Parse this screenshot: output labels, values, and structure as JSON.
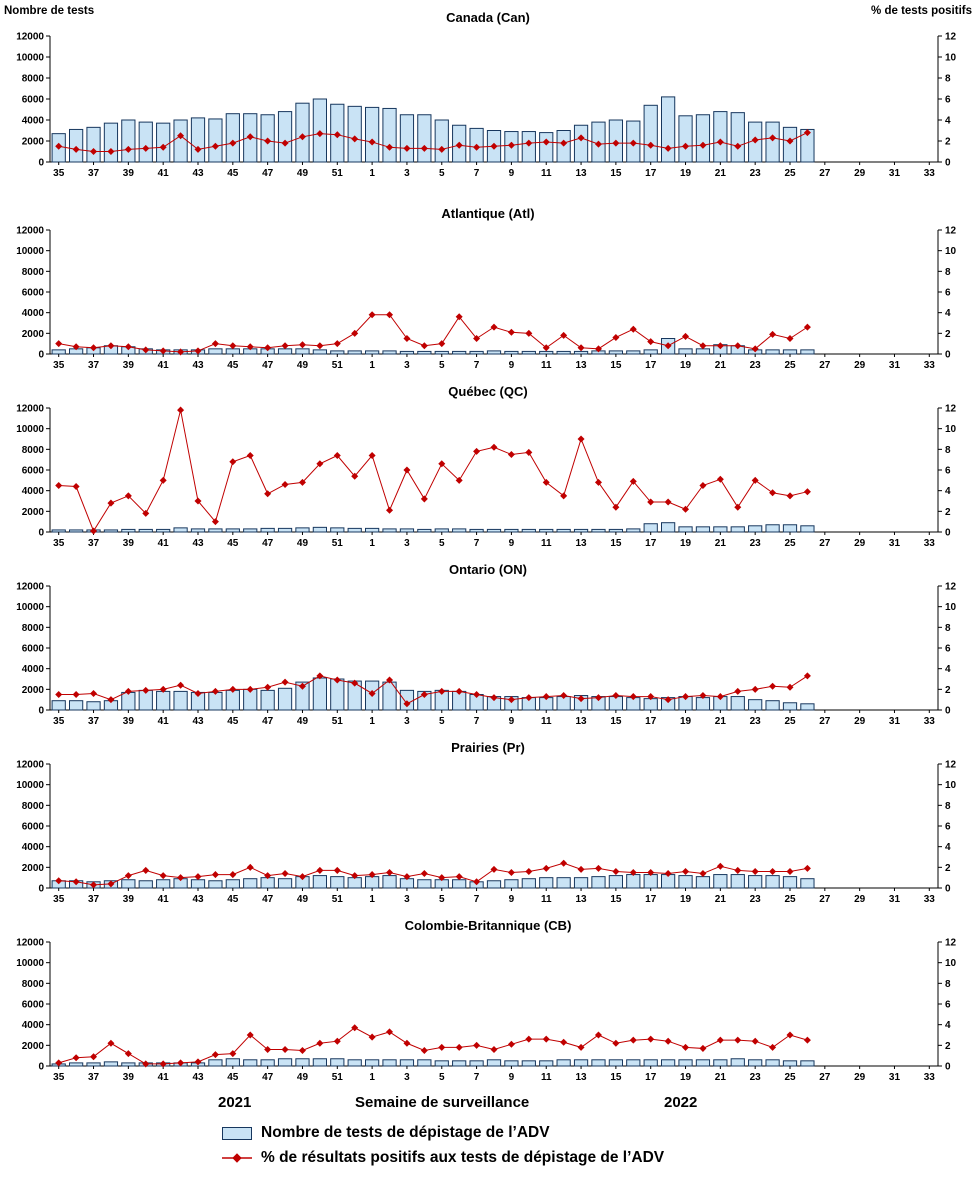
{
  "header": {
    "left_axis_label": "Nombre de tests",
    "right_axis_label": "% de tests positifs"
  },
  "footer": {
    "year_left": "2021",
    "x_axis_title": "Semaine de surveillance",
    "year_right": "2022"
  },
  "legend": {
    "bars_label": "Nombre de tests de dépistage de l’ADV",
    "line_label": "% de résultats positifs aux tests de dépistage de l’ADV"
  },
  "colors": {
    "bar_fill": "#C9E3F5",
    "bar_stroke": "#17375E",
    "line": "#C00000",
    "axis": "#000000"
  },
  "chart_data": {
    "type": "bar",
    "subtype": "small-multiples combo bar+line",
    "categories": [
      "35",
      "36",
      "37",
      "38",
      "39",
      "40",
      "41",
      "42",
      "43",
      "44",
      "45",
      "46",
      "47",
      "48",
      "49",
      "50",
      "51",
      "52",
      "1",
      "2",
      "3",
      "4",
      "5",
      "6",
      "7",
      "8",
      "9",
      "10",
      "11",
      "12",
      "13",
      "14",
      "15",
      "16",
      "17",
      "18",
      "19",
      "20",
      "21",
      "22",
      "23",
      "24",
      "25",
      "26",
      "27",
      "28",
      "29",
      "30",
      "31",
      "32",
      "33"
    ],
    "x_tick_labels": [
      "35",
      "37",
      "39",
      "41",
      "43",
      "45",
      "47",
      "49",
      "51",
      "1",
      "3",
      "5",
      "7",
      "9",
      "11",
      "13",
      "15",
      "17",
      "19",
      "21",
      "23",
      "25",
      "27",
      "29",
      "31",
      "33"
    ],
    "left_ylabel": "Nombre de tests",
    "right_ylabel": "% de tests positifs",
    "xlabel": "Semaine de surveillance",
    "left_ylim": [
      0,
      12000
    ],
    "right_ylim": [
      0,
      12
    ],
    "left_yticks": [
      0,
      2000,
      4000,
      6000,
      8000,
      10000,
      12000
    ],
    "right_yticks": [
      0,
      2,
      4,
      6,
      8,
      10,
      12
    ],
    "grid": false,
    "legend_position": "bottom",
    "data_weeks_note": "Data covers 2021 weeks 35-52 and 2022 weeks 1-26; weeks 27-33 of 2022 empty",
    "panels": [
      {
        "slug": "canada",
        "title": "Canada (Can)",
        "tests": [
          2700,
          3100,
          3300,
          3700,
          4000,
          3800,
          3700,
          4000,
          4200,
          4100,
          4600,
          4600,
          4500,
          4800,
          5600,
          6000,
          5500,
          5300,
          5200,
          5100,
          4500,
          4500,
          4000,
          3500,
          3200,
          3000,
          2900,
          2900,
          2800,
          3000,
          3500,
          3800,
          4000,
          3900,
          5400,
          6200,
          4400,
          4500,
          4800,
          4700,
          3800,
          3800,
          3300,
          3100
        ],
        "pct_positive": [
          1.5,
          1.2,
          1.0,
          1.0,
          1.2,
          1.3,
          1.4,
          2.5,
          1.2,
          1.5,
          1.8,
          2.4,
          2.0,
          1.8,
          2.4,
          2.7,
          2.6,
          2.2,
          1.9,
          1.4,
          1.3,
          1.3,
          1.2,
          1.6,
          1.4,
          1.5,
          1.6,
          1.8,
          1.9,
          1.8,
          2.3,
          1.7,
          1.8,
          1.8,
          1.6,
          1.3,
          1.5,
          1.6,
          1.9,
          1.5,
          2.1,
          2.3,
          2.0,
          2.8
        ]
      },
      {
        "slug": "atlantique",
        "title": "Atlantique (Atl)",
        "tests": [
          400,
          500,
          600,
          800,
          700,
          500,
          400,
          400,
          400,
          500,
          500,
          500,
          500,
          500,
          500,
          400,
          300,
          300,
          300,
          300,
          250,
          250,
          250,
          250,
          250,
          300,
          250,
          250,
          250,
          250,
          250,
          300,
          300,
          300,
          400,
          1500,
          500,
          500,
          900,
          800,
          400,
          400,
          400,
          400
        ],
        "pct_positive": [
          1.0,
          0.7,
          0.6,
          0.8,
          0.7,
          0.4,
          0.3,
          0.2,
          0.3,
          1.0,
          0.8,
          0.7,
          0.6,
          0.8,
          0.9,
          0.8,
          1.0,
          2.0,
          3.8,
          3.8,
          1.5,
          0.8,
          1.0,
          3.6,
          1.5,
          2.6,
          2.1,
          2.0,
          0.6,
          1.8,
          0.6,
          0.5,
          1.6,
          2.4,
          1.2,
          0.8,
          1.7,
          0.8,
          0.8,
          0.8,
          0.5,
          1.9,
          1.5,
          2.6
        ]
      },
      {
        "slug": "quebec",
        "title": "Québec (QC)",
        "tests": [
          200,
          200,
          200,
          200,
          250,
          250,
          250,
          400,
          300,
          300,
          300,
          300,
          350,
          350,
          400,
          450,
          400,
          350,
          350,
          300,
          300,
          250,
          300,
          300,
          250,
          250,
          250,
          250,
          250,
          250,
          250,
          250,
          250,
          300,
          800,
          900,
          500,
          500,
          500,
          500,
          600,
          700,
          700,
          600
        ],
        "pct_positive": [
          4.5,
          4.4,
          0.1,
          2.8,
          3.5,
          1.8,
          5.0,
          11.8,
          3.0,
          1.0,
          6.8,
          7.4,
          3.7,
          4.6,
          4.8,
          6.6,
          7.4,
          5.4,
          7.4,
          2.1,
          6.0,
          3.2,
          6.6,
          5.0,
          7.8,
          8.2,
          7.5,
          7.7,
          4.8,
          3.5,
          9.0,
          4.8,
          2.4,
          4.9,
          2.9,
          2.9,
          2.2,
          4.5,
          5.1,
          2.4,
          5.0,
          3.8,
          3.5,
          3.9
        ]
      },
      {
        "slug": "ontario",
        "title": "Ontario (ON)",
        "tests": [
          900,
          900,
          800,
          900,
          1700,
          1900,
          1800,
          1800,
          1700,
          1700,
          1900,
          2000,
          1900,
          2100,
          2700,
          3100,
          3000,
          2800,
          2800,
          2700,
          1900,
          1800,
          1900,
          1800,
          1500,
          1300,
          1300,
          1200,
          1200,
          1300,
          1400,
          1300,
          1300,
          1200,
          1100,
          1200,
          1300,
          1200,
          1300,
          1300,
          1000,
          900,
          700,
          600
        ],
        "pct_positive": [
          1.5,
          1.5,
          1.6,
          1.0,
          1.8,
          1.9,
          2.0,
          2.4,
          1.6,
          1.8,
          2.0,
          2.0,
          2.2,
          2.7,
          2.3,
          3.3,
          2.9,
          2.6,
          1.6,
          2.9,
          0.6,
          1.5,
          1.8,
          1.8,
          1.5,
          1.2,
          1.0,
          1.2,
          1.3,
          1.4,
          1.1,
          1.2,
          1.4,
          1.3,
          1.3,
          1.0,
          1.3,
          1.4,
          1.3,
          1.8,
          2.0,
          2.3,
          2.2,
          3.3
        ]
      },
      {
        "slug": "prairies",
        "title": "Prairies (Pr)",
        "tests": [
          700,
          700,
          600,
          700,
          800,
          700,
          800,
          900,
          800,
          700,
          800,
          900,
          1000,
          900,
          1100,
          1200,
          1100,
          1000,
          1100,
          1200,
          900,
          800,
          800,
          800,
          600,
          700,
          800,
          900,
          1000,
          1000,
          1000,
          1100,
          1200,
          1300,
          1300,
          1300,
          1200,
          1100,
          1300,
          1300,
          1200,
          1200,
          1100,
          900
        ],
        "pct_positive": [
          0.7,
          0.6,
          0.3,
          0.4,
          1.2,
          1.7,
          1.2,
          1.0,
          1.1,
          1.3,
          1.3,
          2.0,
          1.2,
          1.4,
          1.1,
          1.7,
          1.7,
          1.2,
          1.3,
          1.5,
          1.1,
          1.4,
          1.0,
          1.1,
          0.6,
          1.8,
          1.5,
          1.6,
          1.9,
          2.4,
          1.8,
          1.9,
          1.6,
          1.5,
          1.5,
          1.4,
          1.6,
          1.4,
          2.1,
          1.7,
          1.6,
          1.6,
          1.6,
          1.9
        ]
      },
      {
        "slug": "colombie-britannique",
        "title": "Colombie-Britannique (CB)",
        "tests": [
          200,
          300,
          300,
          400,
          300,
          300,
          300,
          300,
          300,
          600,
          700,
          600,
          600,
          700,
          700,
          700,
          700,
          600,
          600,
          600,
          600,
          600,
          500,
          500,
          500,
          600,
          500,
          500,
          500,
          600,
          600,
          600,
          600,
          600,
          600,
          600,
          600,
          600,
          600,
          700,
          600,
          600,
          500,
          500
        ],
        "pct_positive": [
          0.3,
          0.8,
          0.9,
          2.2,
          1.2,
          0.2,
          0.2,
          0.3,
          0.4,
          1.1,
          1.2,
          3.0,
          1.6,
          1.6,
          1.5,
          2.2,
          2.4,
          3.7,
          2.8,
          3.3,
          2.2,
          1.5,
          1.8,
          1.8,
          2.0,
          1.6,
          2.1,
          2.6,
          2.6,
          2.3,
          1.8,
          3.0,
          2.2,
          2.5,
          2.6,
          2.4,
          1.8,
          1.7,
          2.5,
          2.5,
          2.4,
          1.8,
          3.0,
          2.5
        ]
      }
    ]
  }
}
